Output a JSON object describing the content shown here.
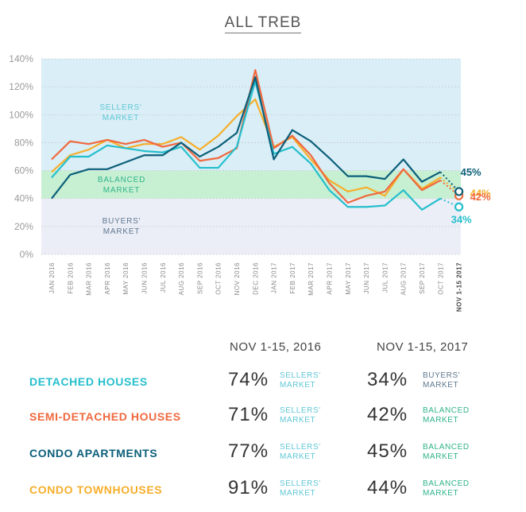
{
  "title": "ALL TREB",
  "colors": {
    "detached": "#25bfcc",
    "semi": "#f0683e",
    "condo_apt": "#0c5f7a",
    "condo_town": "#f6ae2a",
    "sellers_zone": "#d9eef6",
    "balanced_zone": "#c7f0d3",
    "buyers_zone": "#eceef7"
  },
  "zone_labels": {
    "sellers": "SELLERS'\nMARKET",
    "balanced": "BALANCED\nMARKET",
    "buyers": "BUYERS'\nMARKET"
  },
  "chart_data": {
    "type": "line",
    "title": "ALL TREB",
    "x": [
      "JAN 2016",
      "FEB 2016",
      "MAR 2016",
      "APR 2016",
      "MAY 2016",
      "JUN 2016",
      "JUL 2016",
      "AUG 2016",
      "SEP 2016",
      "OCT 2016",
      "NOV 2016",
      "DEC 2016",
      "JAN 2017",
      "FEB 2017",
      "MAR 2017",
      "APR 2017",
      "MAY 2017",
      "JUN 2017",
      "JUL 2017",
      "AUG 2017",
      "SEP 2017",
      "OCT 2017",
      "NOV 1-15 2017"
    ],
    "y_ticks": [
      "0%",
      "20%",
      "40%",
      "60%",
      "80%",
      "100%",
      "120%",
      "140%"
    ],
    "ylim": [
      0,
      140
    ],
    "zones": [
      {
        "name": "buyers",
        "from": 0,
        "to": 40
      },
      {
        "name": "balanced",
        "from": 40,
        "to": 60
      },
      {
        "name": "sellers",
        "from": 60,
        "to": 140
      }
    ],
    "series": [
      {
        "key": "condo_town",
        "values": [
          59,
          71,
          75,
          82,
          76,
          79,
          79,
          84,
          75,
          85,
          99,
          111,
          77,
          84,
          68,
          53,
          45,
          48,
          42,
          61,
          47,
          55,
          44
        ],
        "end_label": "44%"
      },
      {
        "key": "semi",
        "values": [
          68,
          81,
          79,
          82,
          79,
          82,
          77,
          80,
          67,
          69,
          76,
          132,
          76,
          85,
          71,
          51,
          37,
          42,
          45,
          61,
          46,
          53,
          42
        ],
        "end_label": "42%"
      },
      {
        "key": "detached",
        "values": [
          55,
          70,
          70,
          78,
          76,
          74,
          73,
          77,
          62,
          62,
          77,
          124,
          72,
          77,
          65,
          46,
          34,
          34,
          35,
          46,
          32,
          40,
          34
        ],
        "end_label": "34%"
      },
      {
        "key": "condo_apt",
        "values": [
          40,
          57,
          61,
          61,
          66,
          71,
          71,
          80,
          70,
          77,
          87,
          127,
          68,
          89,
          81,
          69,
          56,
          56,
          54,
          68,
          52,
          59,
          45
        ],
        "end_label": "45%"
      }
    ]
  },
  "table": {
    "col_2016": "NOV 1-15, 2016",
    "col_2017": "NOV 1-15, 2017",
    "rows": [
      {
        "key": "detached",
        "name": "DETACHED HOUSES",
        "pct_2016": "74%",
        "mkt_2016": "SELLERS'\nMARKET",
        "pct_2017": "34%",
        "mkt_2017": "BUYERS'\nMARKET"
      },
      {
        "key": "semi",
        "name": "SEMI-DETACHED HOUSES",
        "pct_2016": "71%",
        "mkt_2016": "SELLERS'\nMARKET",
        "pct_2017": "42%",
        "mkt_2017": "BALANCED\nMARKET"
      },
      {
        "key": "condo_apt",
        "name": "CONDO APARTMENTS",
        "pct_2016": "77%",
        "mkt_2016": "SELLERS'\nMARKET",
        "pct_2017": "45%",
        "mkt_2017": "BALANCED\nMARKET"
      },
      {
        "key": "condo_town",
        "name": "CONDO TOWNHOUSES",
        "pct_2016": "91%",
        "mkt_2016": "SELLERS'\nMARKET",
        "pct_2017": "44%",
        "mkt_2017": "BALANCED\nMARKET"
      }
    ]
  }
}
